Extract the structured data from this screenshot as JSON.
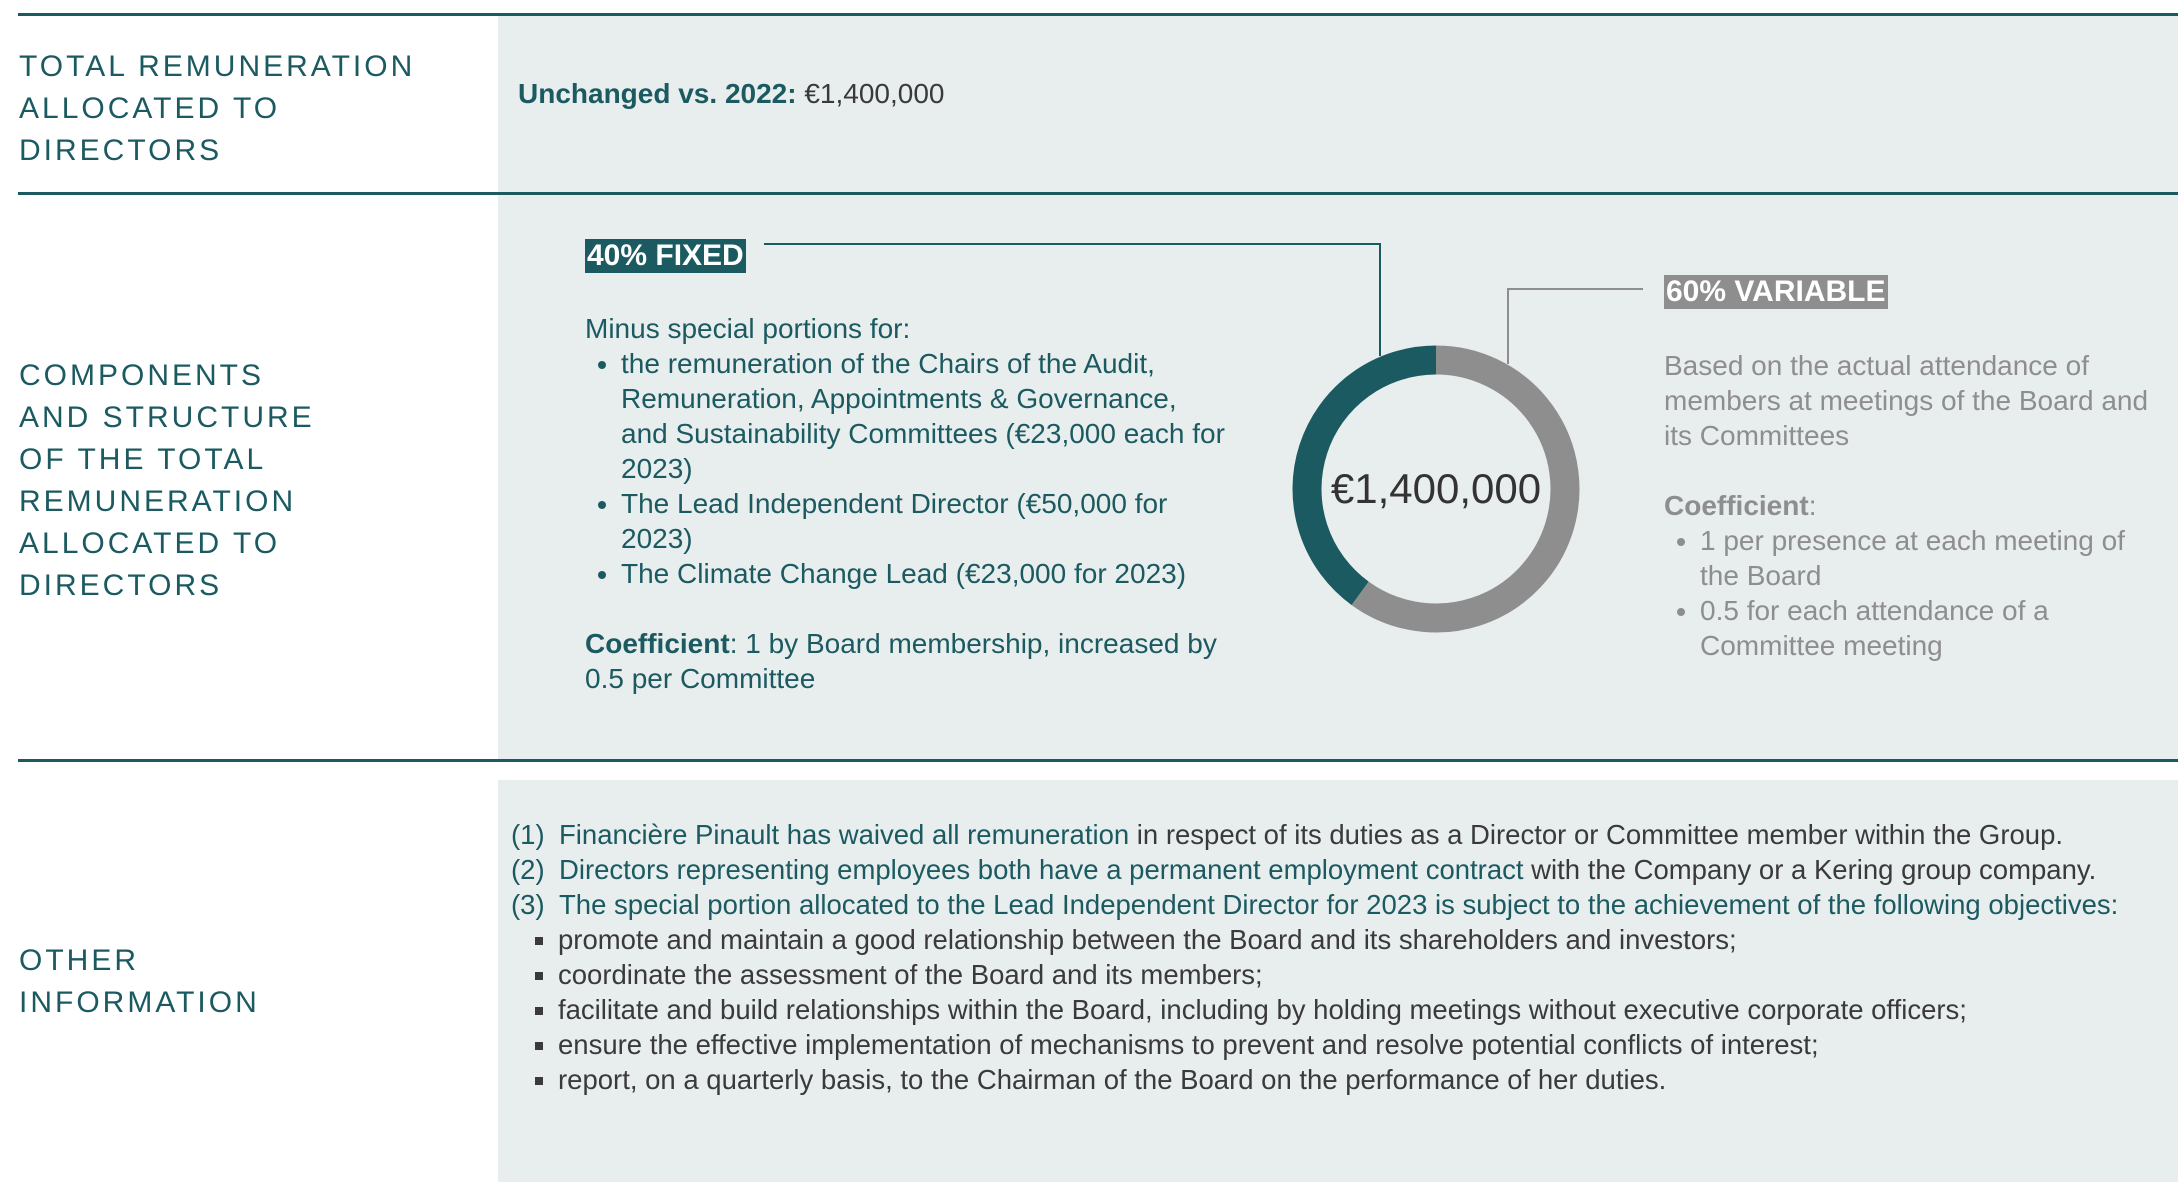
{
  "sections": [
    {
      "label_lines": [
        "TOTAL REMUNERATION",
        "ALLOCATED TO",
        "DIRECTORS"
      ],
      "bold": "Unchanged vs. 2022:",
      "value": "€1,400,000"
    },
    {
      "label_lines": [
        "COMPONENTS",
        "AND STRUCTURE",
        "OF THE TOTAL",
        "REMUNERATION",
        "ALLOCATED TO",
        "DIRECTORS"
      ],
      "fixed": {
        "intro": "Minus special portions for:",
        "bullets": [
          "the remuneration of the Chairs of the Audit, Remuneration, Appointments & Governance, and Sustainability Committees (€23,000 each for 2023)",
          "The Lead Independent Director (€50,000 for 2023)",
          "The Climate Change Lead (€23,000 for 2023)"
        ],
        "coefficient_label": "Coefficient",
        "coefficient_text": ": 1 by Board membership, increased by 0.5 per Committee"
      },
      "variable": {
        "text": "Based on the actual attendance of members at meetings of the Board and its Committees",
        "coefficient_label": "Coefficient",
        "coefficient_text": ":",
        "bullets": [
          "1 per presence at each meeting of the Board",
          "0.5 for each attendance of a Committee meeting"
        ]
      },
      "donut": {
        "center_label": "€1,400,000",
        "segments": [
          {
            "label": "40% FIXED",
            "value": 40,
            "color": "#1b5a60"
          },
          {
            "label": "60% VARIABLE",
            "value": 60,
            "color": "#8e8e8e"
          }
        ]
      }
    },
    {
      "label_lines": [
        "OTHER",
        "INFORMATION"
      ],
      "notes": [
        {
          "num": "(1)",
          "teal": "Financière Pinault has waived all remuneration",
          "rest": " in respect of its duties as a Director or Committee member within the Group."
        },
        {
          "num": "(2)",
          "teal": "Directors representing employees both have a permanent employment contract",
          "rest": " with the Company or a Kering group company."
        },
        {
          "num": "(3)",
          "teal": "The special portion allocated to the Lead Independent Director for 2023 is subject to the achievement of the following objectives:",
          "rest": ""
        }
      ],
      "objectives": [
        "promote and maintain a good relationship between the Board and its shareholders and investors;",
        "coordinate the assessment of the Board and its members;",
        "facilitate and build relationships within the Board, including by holding meetings without executive corporate officers;",
        "ensure the effective implementation of mechanisms to prevent and resolve potential conflicts of interest;",
        "report, on a quarterly basis, to the Chairman of the Board on the performance of her duties."
      ]
    }
  ]
}
